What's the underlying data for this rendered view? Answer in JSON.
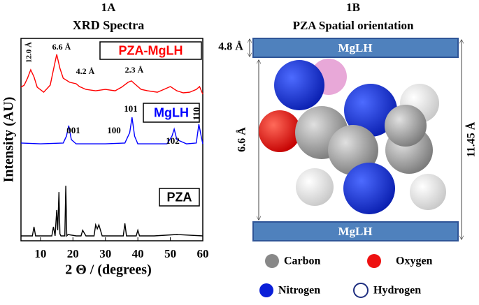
{
  "chart_data": {
    "type": "line",
    "panel": "1A",
    "title": "XRD Spectra",
    "x_label": "2 Θ / (degrees)",
    "y_label": "Intensity (AU)",
    "xlim": [
      4,
      60
    ],
    "xticks": [
      10,
      20,
      30,
      40,
      50,
      60
    ],
    "ylim": [
      0,
      100
    ],
    "series": [
      {
        "name": "PZA-MgLH",
        "color": "#ff0000",
        "x": [
          4,
          5,
          6,
          7,
          8,
          9,
          11,
          13,
          14,
          15,
          16,
          17,
          19,
          21,
          22,
          24,
          27,
          30,
          33,
          35,
          37,
          38,
          39,
          41,
          43,
          46,
          48,
          50,
          52,
          54,
          56,
          58,
          59,
          60
        ],
        "values": [
          75.9,
          76.9,
          80.3,
          84.5,
          81.0,
          75.9,
          73.4,
          76.9,
          84.5,
          92.1,
          85.2,
          80.3,
          78.3,
          77.6,
          76.2,
          74.8,
          74.1,
          74.8,
          74.1,
          75.9,
          78.3,
          79.0,
          77.6,
          74.8,
          74.1,
          73.4,
          74.8,
          76.2,
          74.1,
          73.1,
          73.4,
          74.8,
          76.2,
          72.4
        ]
      },
      {
        "name": "MgLH",
        "color": "#0000ff",
        "x": [
          4,
          10,
          17,
          18,
          18.7,
          19.5,
          21,
          30,
          36,
          37.5,
          38.2,
          39,
          40,
          49,
          50.5,
          51.2,
          52,
          55,
          58,
          58.8,
          59.5,
          60
        ],
        "values": [
          48.3,
          47.9,
          48.3,
          51.7,
          56.9,
          50.0,
          47.9,
          47.9,
          48.3,
          53.4,
          61.0,
          51.7,
          47.9,
          47.9,
          51.7,
          55.2,
          50.0,
          47.9,
          48.3,
          57.6,
          51.7,
          47.9
        ]
      },
      {
        "name": "PZA",
        "color": "#000000",
        "x": [
          4,
          7.5,
          8,
          8.5,
          13.5,
          14,
          14.5,
          15,
          15.3,
          15.7,
          16,
          16.3,
          17.5,
          17.8,
          18.1,
          18.5,
          21,
          22.5,
          23,
          24,
          26.5,
          27,
          27.5,
          28,
          29,
          35.5,
          36,
          36.5,
          39.5,
          40,
          40.5,
          45,
          52,
          60
        ],
        "values": [
          2.4,
          2.4,
          6.9,
          2.4,
          2.4,
          6.9,
          2.4,
          15.2,
          5.2,
          24.1,
          3.4,
          2.4,
          2.4,
          27.2,
          2.4,
          3.1,
          2.4,
          2.4,
          5.2,
          2.4,
          2.4,
          7.9,
          5.9,
          7.9,
          2.4,
          2.4,
          8.6,
          2.4,
          2.4,
          5.2,
          2.4,
          2.4,
          3.1,
          2.4
        ]
      }
    ],
    "annotations": [
      "12.0 Å",
      "6.6 Å",
      "4.2 Å",
      "2.3 Å",
      "001",
      "100",
      "101",
      "102",
      "110"
    ]
  },
  "diagram": {
    "panel": "1B",
    "title": "PZA Spatial orientation",
    "top_layer": "MgLH",
    "bottom_layer": "MgLH",
    "gap": "4.8 Å",
    "molecule_height": "6.6 Å",
    "spacing": "11.45 Å",
    "legend": [
      "Carbon",
      "Oxygen",
      "Nitrogen",
      "Hydrogen"
    ]
  }
}
